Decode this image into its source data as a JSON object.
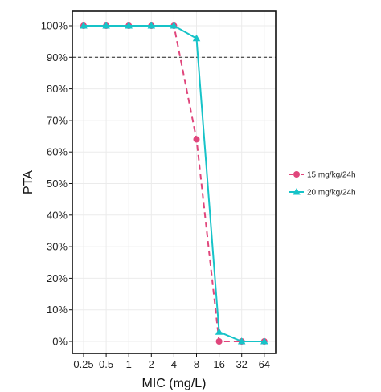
{
  "chart_data": {
    "type": "line",
    "xlabel": "MIC (mg/L)",
    "ylabel": "PTA",
    "x_scale": "log2",
    "categories": [
      "0.25",
      "0.5",
      "1",
      "2",
      "4",
      "8",
      "16",
      "32",
      "64"
    ],
    "x": [
      0.25,
      0.5,
      1,
      2,
      4,
      8,
      16,
      32,
      64
    ],
    "ylim": [
      0,
      100
    ],
    "yticks": [
      "0%",
      "10%",
      "20%",
      "30%",
      "40%",
      "50%",
      "60%",
      "70%",
      "80%",
      "90%",
      "100%"
    ],
    "reference_line": {
      "value": 90,
      "style": "dashed",
      "color": "#222222"
    },
    "grid": true,
    "legend_position": "right",
    "series": [
      {
        "name": "15 mg/kg/24h",
        "marker": "circle",
        "line_style": "dashed",
        "color": "#e0467c",
        "values": [
          100,
          100,
          100,
          100,
          100,
          64,
          0,
          0,
          0
        ]
      },
      {
        "name": "20 mg/kg/24h",
        "marker": "triangle",
        "line_style": "solid",
        "color": "#17c3c8",
        "values": [
          100,
          100,
          100,
          100,
          100,
          96,
          3,
          0,
          0
        ]
      }
    ]
  }
}
